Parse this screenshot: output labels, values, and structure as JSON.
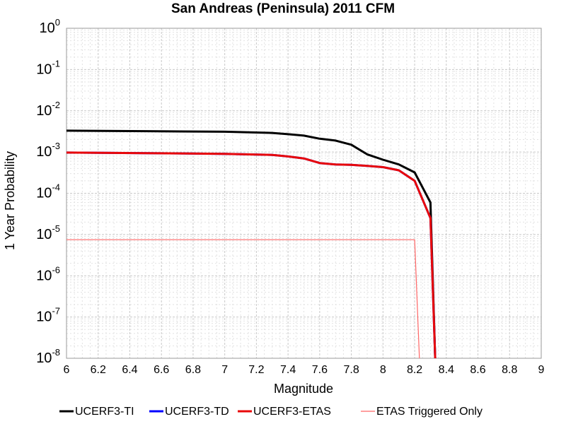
{
  "chart_data": {
    "type": "line",
    "title": "San Andreas (Peninsula) 2011 CFM",
    "xlabel": "Magnitude",
    "ylabel": "1 Year Probability",
    "xlim": [
      6,
      9
    ],
    "ylim": [
      1e-08,
      1
    ],
    "y_scale": "log",
    "grid": true,
    "legend_position": "bottom",
    "x_ticks": [
      "6",
      "6.2",
      "6.4",
      "6.6",
      "6.8",
      "7",
      "7.2",
      "7.4",
      "7.6",
      "7.8",
      "8",
      "8.2",
      "8.4",
      "8.6",
      "8.8",
      "9"
    ],
    "y_ticks": [
      {
        "base": "10",
        "exp": "0",
        "value": 1
      },
      {
        "base": "10",
        "exp": "-1",
        "value": 0.1
      },
      {
        "base": "10",
        "exp": "-2",
        "value": 0.01
      },
      {
        "base": "10",
        "exp": "-3",
        "value": 0.001
      },
      {
        "base": "10",
        "exp": "-4",
        "value": 0.0001
      },
      {
        "base": "10",
        "exp": "-5",
        "value": 1e-05
      },
      {
        "base": "10",
        "exp": "-6",
        "value": 1e-06
      },
      {
        "base": "10",
        "exp": "-7",
        "value": 1e-07
      },
      {
        "base": "10",
        "exp": "-8",
        "value": 1e-08
      }
    ],
    "series": [
      {
        "name": "UCERF3-TI",
        "color": "#000000",
        "x": [
          6.0,
          6.5,
          7.0,
          7.3,
          7.4,
          7.5,
          7.6,
          7.7,
          7.8,
          7.9,
          8.0,
          8.1,
          8.2,
          8.3,
          8.33
        ],
        "y": [
          0.0033,
          0.0032,
          0.0031,
          0.0029,
          0.0027,
          0.0025,
          0.0021,
          0.0019,
          0.0015,
          0.00088,
          0.00065,
          0.0005,
          0.00032,
          6e-05,
          1e-08
        ]
      },
      {
        "name": "UCERF3-TD",
        "color": "#0000ff",
        "x": [
          6.0,
          6.5,
          7.0,
          7.3,
          7.4,
          7.5,
          7.6,
          7.7,
          7.8,
          7.9,
          8.0,
          8.1,
          8.2,
          8.3,
          8.33
        ],
        "y": [
          0.00097,
          0.00094,
          0.0009,
          0.00085,
          0.00078,
          0.0007,
          0.00054,
          0.0005,
          0.00049,
          0.00046,
          0.00043,
          0.00036,
          0.0002,
          2.5e-05,
          1e-08
        ]
      },
      {
        "name": "UCERF3-ETAS",
        "color": "#e8080a",
        "x": [
          6.0,
          6.5,
          7.0,
          7.3,
          7.4,
          7.5,
          7.6,
          7.7,
          7.8,
          7.9,
          8.0,
          8.1,
          8.2,
          8.3,
          8.33
        ],
        "y": [
          0.00097,
          0.00094,
          0.0009,
          0.00085,
          0.00078,
          0.0007,
          0.00054,
          0.0005,
          0.00049,
          0.00046,
          0.00043,
          0.00036,
          0.0002,
          2.5e-05,
          1e-08
        ]
      },
      {
        "name": "ETAS Triggered Only",
        "color": "#ff6666",
        "x": [
          6.0,
          8.2,
          8.23
        ],
        "y": [
          7.5e-06,
          7.5e-06,
          1e-08
        ]
      }
    ]
  }
}
